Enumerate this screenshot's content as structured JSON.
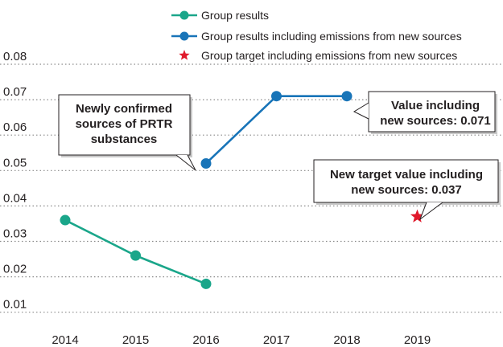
{
  "chart_data": {
    "type": "line",
    "title": "",
    "xlabel": "",
    "ylabel": "",
    "categories": [
      "2014",
      "2015",
      "2016",
      "2017",
      "2018",
      "2019"
    ],
    "y_ticks": [
      "0.01",
      "0.02",
      "0.03",
      "0.04",
      "0.05",
      "0.06",
      "0.07",
      "0.08"
    ],
    "ylim": [
      0.005,
      0.085
    ],
    "grid": "dotted horizontal",
    "legend_position": "top-right",
    "series": [
      {
        "name": "Group results",
        "color": "#1aa68a",
        "marker": "circle",
        "points": [
          {
            "x": "2014",
            "y": 0.036
          },
          {
            "x": "2015",
            "y": 0.026
          },
          {
            "x": "2016",
            "y": 0.018
          }
        ]
      },
      {
        "name": "Group results including emissions from new sources",
        "color": "#1874b8",
        "marker": "circle",
        "points": [
          {
            "x": "2016",
            "y": 0.052
          },
          {
            "x": "2017",
            "y": 0.071
          },
          {
            "x": "2018",
            "y": 0.071
          }
        ]
      },
      {
        "name": "Group target including emissions from new sources",
        "color": "#e0192b",
        "marker": "star",
        "points": [
          {
            "x": "2019",
            "y": 0.037
          }
        ]
      }
    ],
    "annotations": [
      {
        "text_lines": [
          "Newly confirmed",
          "sources of PRTR",
          "substances"
        ],
        "target": "new_sources_2016"
      },
      {
        "text_lines": [
          "Value including",
          "new sources: 0.071"
        ],
        "target": "new_sources_2018"
      },
      {
        "text_lines": [
          "New target value including",
          "new sources: 0.037"
        ],
        "target": "target_2019"
      }
    ]
  }
}
